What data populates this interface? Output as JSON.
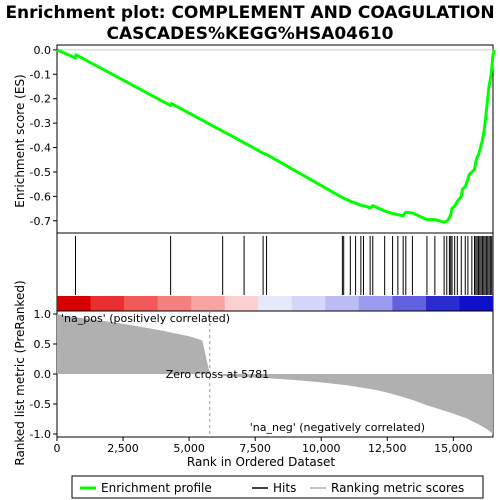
{
  "chart_data": {
    "type": "line",
    "title_line1": "Enrichment plot: COMPLEMENT AND COAGULATION",
    "title_line2": "CASCADES%KEGG%HSA04610",
    "xlabel": "Rank in Ordered Dataset",
    "xlim": [
      0,
      16500
    ],
    "x_ticks": [
      0,
      2500,
      5000,
      7500,
      10000,
      12500,
      15000
    ],
    "x_tick_labels": [
      "0",
      "2,500",
      "5,000",
      "7,500",
      "10,000",
      "12,500",
      "15,000"
    ],
    "es_panel": {
      "ylabel": "Enrichment score (ES)",
      "ylim": [
        -0.75,
        0.02
      ],
      "y_ticks": [
        0.0,
        -0.1,
        -0.2,
        -0.3,
        -0.4,
        -0.5,
        -0.6,
        -0.7
      ],
      "y_tick_labels": [
        "0.0",
        "-0.1",
        "-0.2",
        "-0.3",
        "-0.4",
        "-0.5",
        "-0.6",
        "-0.7"
      ],
      "color": "#00ff00",
      "profile": [
        [
          0,
          0.0
        ],
        [
          700,
          -0.033
        ],
        [
          720,
          -0.02
        ],
        [
          4300,
          -0.228
        ],
        [
          4330,
          -0.22
        ],
        [
          6270,
          -0.333
        ],
        [
          7080,
          -0.38
        ],
        [
          7800,
          -0.423
        ],
        [
          7930,
          -0.428
        ],
        [
          10800,
          -0.605
        ],
        [
          10850,
          -0.608
        ],
        [
          11100,
          -0.62
        ],
        [
          11300,
          -0.628
        ],
        [
          11500,
          -0.636
        ],
        [
          11700,
          -0.641
        ],
        [
          11850,
          -0.648
        ],
        [
          11950,
          -0.638
        ],
        [
          12400,
          -0.66
        ],
        [
          12700,
          -0.67
        ],
        [
          12900,
          -0.675
        ],
        [
          13100,
          -0.68
        ],
        [
          13200,
          -0.665
        ],
        [
          13450,
          -0.668
        ],
        [
          13600,
          -0.675
        ],
        [
          14000,
          -0.695
        ],
        [
          14300,
          -0.695
        ],
        [
          14650,
          -0.706
        ],
        [
          14800,
          -0.698
        ],
        [
          14900,
          -0.675
        ],
        [
          14950,
          -0.65
        ],
        [
          15050,
          -0.64
        ],
        [
          15150,
          -0.62
        ],
        [
          15300,
          -0.6
        ],
        [
          15350,
          -0.57
        ],
        [
          15450,
          -0.56
        ],
        [
          15550,
          -0.53
        ],
        [
          15600,
          -0.51
        ],
        [
          15700,
          -0.5
        ],
        [
          15800,
          -0.49
        ],
        [
          15850,
          -0.46
        ],
        [
          15900,
          -0.44
        ],
        [
          15950,
          -0.43
        ],
        [
          16000,
          -0.41
        ],
        [
          16050,
          -0.39
        ],
        [
          16100,
          -0.37
        ],
        [
          16150,
          -0.34
        ],
        [
          16200,
          -0.3
        ],
        [
          16250,
          -0.25
        ],
        [
          16300,
          -0.2
        ],
        [
          16350,
          -0.15
        ],
        [
          16400,
          -0.12
        ],
        [
          16450,
          -0.08
        ],
        [
          16500,
          -0.02
        ],
        [
          16550,
          0.0
        ]
      ]
    },
    "hits": [
      700,
      4300,
      6270,
      7080,
      7800,
      7930,
      10800,
      10850,
      11100,
      11300,
      11500,
      11600,
      11850,
      11950,
      12400,
      12700,
      12900,
      13100,
      13200,
      13450,
      14000,
      14300,
      14650,
      14750,
      14850,
      14900,
      14950,
      15050,
      15150,
      15300,
      15450,
      15550,
      15700,
      15800,
      15850,
      15900,
      15950,
      16000,
      16050,
      16100,
      16150,
      16200,
      16250,
      16300,
      16350,
      16400,
      16450,
      16500
    ],
    "ranked_metric_panel": {
      "ylabel": "Ranked list metric (PreRanked)",
      "ylim": [
        -1.05,
        1.05
      ],
      "y_ticks": [
        1.0,
        0.5,
        0.0,
        -0.5,
        -1.0
      ],
      "y_tick_labels": [
        "1.0",
        "0.5",
        "0.0",
        "-0.5",
        "-1.0"
      ],
      "fill_color": "#b0b0b0",
      "zero_cross_label": "Zero cross at 5781",
      "zero_cross_x": 5781,
      "pos_label": "'na_pos' (positively correlated)",
      "neg_label": "'na_neg' (negatively correlated)",
      "profile": [
        [
          0,
          1.0
        ],
        [
          300,
          0.97
        ],
        [
          1000,
          0.93
        ],
        [
          2000,
          0.87
        ],
        [
          3000,
          0.8
        ],
        [
          4000,
          0.72
        ],
        [
          5000,
          0.63
        ],
        [
          5500,
          0.56
        ],
        [
          5781,
          0.0
        ],
        [
          6500,
          -0.04
        ],
        [
          8000,
          -0.07
        ],
        [
          9000,
          -0.1
        ],
        [
          10000,
          -0.14
        ],
        [
          11000,
          -0.19
        ],
        [
          12000,
          -0.26
        ],
        [
          12500,
          -0.31
        ],
        [
          13000,
          -0.37
        ],
        [
          13500,
          -0.44
        ],
        [
          14000,
          -0.52
        ],
        [
          14500,
          -0.59
        ],
        [
          15000,
          -0.66
        ],
        [
          15500,
          -0.74
        ],
        [
          16000,
          -0.85
        ],
        [
          16300,
          -0.93
        ],
        [
          16500,
          -1.0
        ]
      ]
    },
    "color_band": [
      "#d70000",
      "#e83030",
      "#f25a5a",
      "#f58080",
      "#f7a3a3",
      "#fbd0d0",
      "#e8e8fb",
      "#d6d6fa",
      "#bcbcf5",
      "#9b9bef",
      "#6262e0",
      "#2b2bd0",
      "#1010c8"
    ],
    "legend": {
      "items": [
        {
          "label": "Enrichment profile",
          "color": "#00ff00"
        },
        {
          "label": "Hits",
          "color": "#000000"
        },
        {
          "label": "Ranking metric scores",
          "color": "#b0b0b0"
        }
      ]
    }
  }
}
